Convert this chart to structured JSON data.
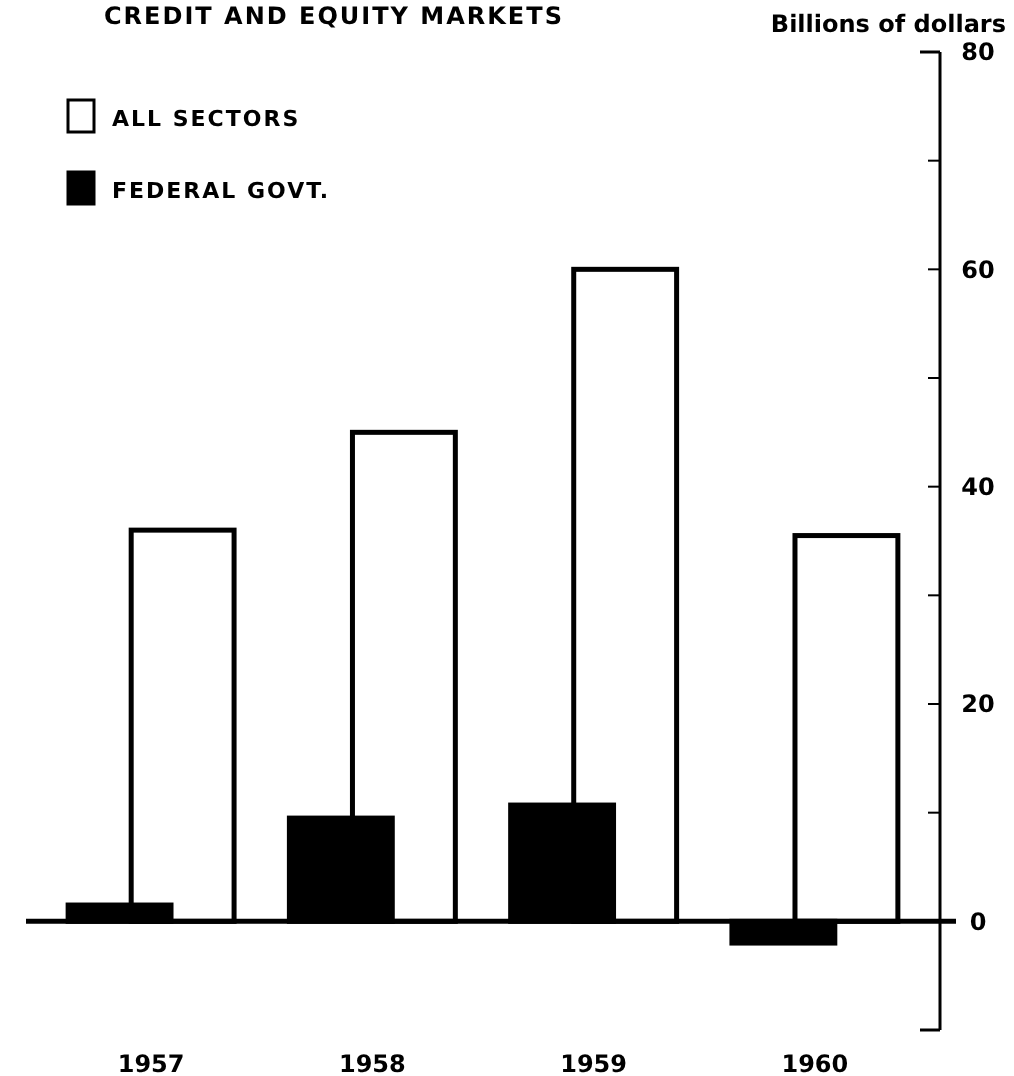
{
  "chart_data": {
    "type": "bar",
    "title": "CREDIT AND EQUITY MARKETS",
    "ylabel": "Billions of dollars",
    "categories": [
      "1957",
      "1958",
      "1959",
      "1960"
    ],
    "series": [
      {
        "name": "ALL SECTORS",
        "color": "#ffffff",
        "values": [
          36,
          45,
          60,
          35.5
        ]
      },
      {
        "name": "FEDERAL GOVT.",
        "color": "#000000",
        "values": [
          1.5,
          9.5,
          10.7,
          -2
        ]
      }
    ],
    "ylim": [
      -10,
      80
    ],
    "yticks": [
      0,
      {
        "value": 10,
        "label": null
      },
      20,
      {
        "value": 30,
        "label": null
      },
      40,
      {
        "value": 50,
        "label": null
      },
      60,
      {
        "value": 70,
        "label": null
      },
      80
    ],
    "legend": "top left"
  }
}
